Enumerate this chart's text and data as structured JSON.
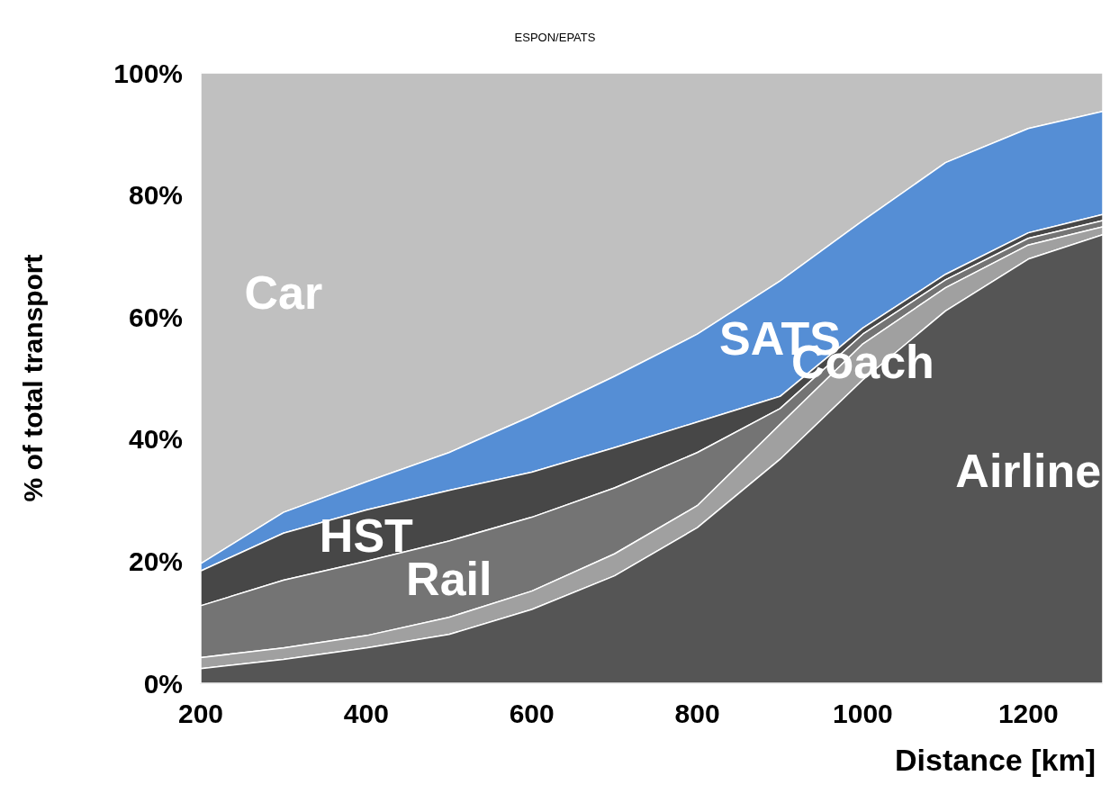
{
  "chart_data": {
    "type": "area",
    "title": "ESPON/EPATS",
    "xlabel": "Distance [km]",
    "ylabel": "% of total transport",
    "stacked": true,
    "x": [
      200,
      300,
      400,
      500,
      600,
      700,
      800,
      900,
      1000,
      1100,
      1200,
      1290
    ],
    "series": [
      {
        "name": "Airline",
        "color": "#555555",
        "values": [
          2.4,
          3.9,
          5.8,
          8,
          12.1,
          17.6,
          25.5,
          36.7,
          49.7,
          61,
          69.5,
          73.5
        ]
      },
      {
        "name": "Coach",
        "color": "#a0a0a0",
        "values": [
          1.8,
          1.9,
          2.0,
          2.8,
          3.0,
          3.6,
          3.6,
          5.7,
          5.9,
          3.8,
          2.3,
          1.3
        ]
      },
      {
        "name": "Rail",
        "color": "#747474",
        "values": [
          8.5,
          11.1,
          12.2,
          12.5,
          12.1,
          10.8,
          8.7,
          2.6,
          1.6,
          1.3,
          1.1,
          1.0
        ]
      },
      {
        "name": "HST",
        "color": "#474747",
        "values": [
          5.7,
          7.7,
          8.4,
          8.3,
          7.4,
          6.6,
          5.0,
          2.0,
          1.0,
          0.9,
          0.9,
          1.0
        ]
      },
      {
        "name": "SATS",
        "color": "#558ed5",
        "values": [
          1.2,
          3.4,
          4.6,
          6.2,
          9.2,
          11.7,
          14.4,
          18.9,
          17.6,
          18.3,
          17.1,
          16.9
        ]
      },
      {
        "name": "Car",
        "color": "#c0c0c0",
        "values": [
          80.4,
          72,
          67,
          62.2,
          56.2,
          49.7,
          42.8,
          34.1,
          24.2,
          14.7,
          9.1,
          6.3
        ]
      }
    ],
    "xlim": [
      200,
      1290
    ],
    "xticks": [
      200,
      400,
      600,
      800,
      1000,
      1200
    ],
    "ylim": [
      0,
      100
    ],
    "yticks": [
      {
        "value": 0,
        "label": "0%"
      },
      {
        "value": 20,
        "label": "20%"
      },
      {
        "value": 40,
        "label": "40%"
      },
      {
        "value": 60,
        "label": "60%"
      },
      {
        "value": 80,
        "label": "80%"
      },
      {
        "value": 100,
        "label": "100%"
      }
    ]
  }
}
